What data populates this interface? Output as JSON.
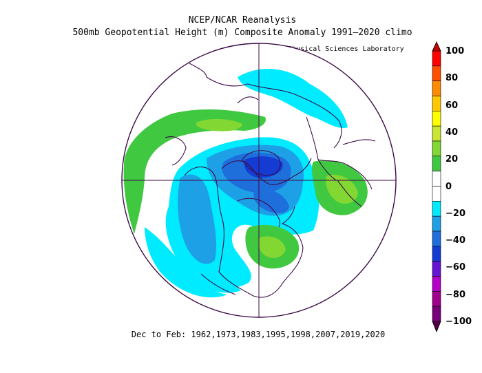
{
  "header": {
    "title_line1": "NCEP/NCAR Reanalysis",
    "title_line2": "500mb Geopotential Height (m) Composite Anomaly 1991–2020 climo",
    "credit": "NOAA Physical Sciences Laboratory"
  },
  "footer": {
    "period": "Dec to Feb: 1962,1973,1983,1995,1998,2007,2019,2020"
  },
  "map": {
    "projection": "north-polar-stereographic",
    "variable": "500mb geopotential height anomaly (m)",
    "anomaly_regions": [
      {
        "region": "Arctic / Baffin Bay / Greenland",
        "anomaly_min": -60,
        "anomaly_max": -20
      },
      {
        "region": "Western Canada & Alaska",
        "anomaly_min": -40,
        "anomaly_max": -20
      },
      {
        "region": "North Pacific / Gulf of Alaska",
        "anomaly_min": -20,
        "anomaly_max": 0
      },
      {
        "region": "Eastern United States",
        "anomaly_min": 20,
        "anomaly_max": 40
      },
      {
        "region": "Mediterranean / Eastern Atlantic",
        "anomaly_min": 20,
        "anomaly_max": 40
      },
      {
        "region": "Siberia / Arctic Russia",
        "anomaly_min": -20,
        "anomaly_max": 0
      },
      {
        "region": "North Pacific arc",
        "anomaly_min": 20,
        "anomaly_max": 30
      }
    ]
  },
  "colorbar": {
    "labels": [
      "100",
      "80",
      "60",
      "40",
      "20",
      "0",
      "−20",
      "−40",
      "−60",
      "−80",
      "−100"
    ],
    "colors": {
      "plus100": "#c80000",
      "plus90": "#ff0000",
      "plus80": "#ff5000",
      "plus70": "#ff8c00",
      "plus60": "#ffc800",
      "plus50": "#ffff00",
      "plus40": "#c8e632",
      "plus30": "#82d732",
      "plus20": "#41c841",
      "zero": "#ffffff",
      "minus20": "#00ebff",
      "minus30": "#1ea0e6",
      "minus40": "#1e6edc",
      "minus50": "#143cd2",
      "minus60": "#6414d2",
      "minus70": "#b400c8",
      "minus80": "#a0008c",
      "minus90": "#780078",
      "minus100": "#500046"
    }
  }
}
